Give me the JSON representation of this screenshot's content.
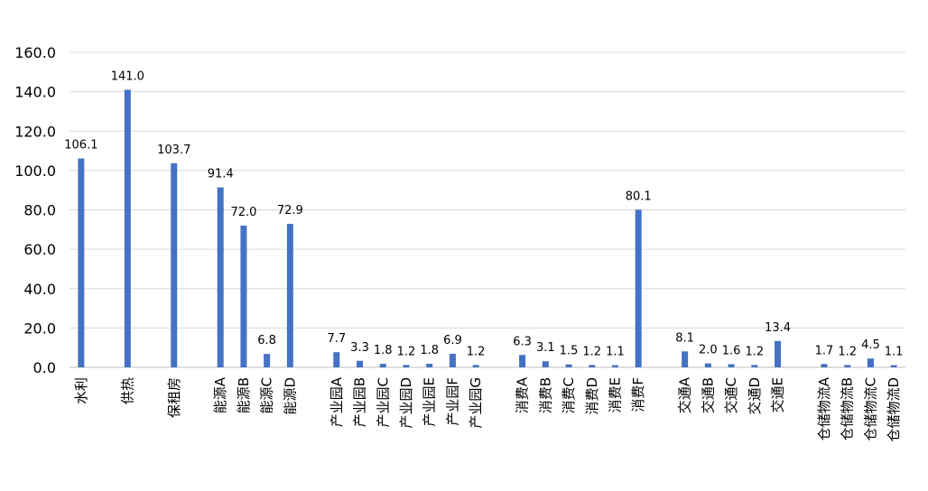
{
  "chart_data": {
    "type": "bar",
    "color": "#4472C4",
    "grid": true,
    "ylim": [
      0,
      160
    ],
    "yticks": [
      "0.0",
      "20.0",
      "40.0",
      "60.0",
      "80.0",
      "100.0",
      "120.0",
      "140.0",
      "160.0"
    ],
    "groups": [
      {
        "categories": [
          "水利"
        ],
        "values": [
          106.1
        ],
        "labels": [
          "106.1"
        ]
      },
      {
        "categories": [
          "供热"
        ],
        "values": [
          141.0
        ],
        "labels": [
          "141.0"
        ]
      },
      {
        "categories": [
          "保租房"
        ],
        "values": [
          103.7
        ],
        "labels": [
          "103.7"
        ]
      },
      {
        "categories": [
          "能源A",
          "能源B",
          "能源C",
          "能源D"
        ],
        "values": [
          91.4,
          72.0,
          6.8,
          72.9
        ],
        "labels": [
          "91.4",
          "72.0",
          "6.8",
          "72.9"
        ]
      },
      {
        "categories": [
          "产业园A",
          "产业园B",
          "产业园C",
          "产业园D",
          "产业园E",
          "产业园F",
          "产业园G"
        ],
        "values": [
          7.7,
          3.3,
          1.8,
          1.2,
          1.8,
          6.9,
          1.2
        ],
        "labels": [
          "7.7",
          "3.3",
          "1.8",
          "1.2",
          "1.8",
          "6.9",
          "1.2"
        ]
      },
      {
        "categories": [
          "消费A",
          "消费B",
          "消费C",
          "消费D",
          "消费E",
          "消费F"
        ],
        "values": [
          6.3,
          3.1,
          1.5,
          1.2,
          1.1,
          80.1
        ],
        "labels": [
          "6.3",
          "3.1",
          "1.5",
          "1.2",
          "1.1",
          "80.1"
        ]
      },
      {
        "categories": [
          "交通A",
          "交通B",
          "交通C",
          "交通D",
          "交通E"
        ],
        "values": [
          8.1,
          2.0,
          1.6,
          1.2,
          13.4
        ],
        "labels": [
          "8.1",
          "2.0",
          "1.6",
          "1.2",
          "13.4"
        ]
      },
      {
        "categories": [
          "仓储物流A",
          "仓储物流B",
          "仓储物流C",
          "仓储物流D"
        ],
        "values": [
          1.7,
          1.2,
          4.5,
          1.1
        ],
        "labels": [
          "1.7",
          "1.2",
          "4.5",
          "1.1"
        ]
      }
    ]
  }
}
